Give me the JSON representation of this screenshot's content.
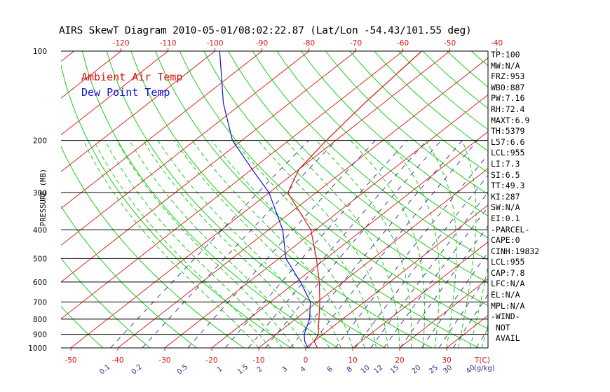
{
  "chart_data": {
    "type": "skew-t",
    "title": "AIRS SkewT Diagram 2010-05-01/08:02:22.87 (Lat/Lon -54.43/101.55 deg)",
    "ylabel": "PRESSURE (MB)",
    "yscale": "log",
    "ylim": [
      1000,
      100
    ],
    "pressure_ticks": [
      100,
      200,
      300,
      400,
      500,
      600,
      700,
      800,
      900,
      1000
    ],
    "bottom_temp_ticks": [
      -50,
      -40,
      -30,
      -20,
      -10,
      0,
      10,
      20,
      30
    ],
    "bottom_temp_unit_label": "T(C)",
    "top_temp_ticks": [
      -120,
      -110,
      -100,
      -90,
      -80,
      -70,
      -60,
      -50,
      -40
    ],
    "mixing_ratio_ticks": [
      "0.1",
      "0.2",
      "0.5",
      "1",
      "1.5",
      "2",
      "3",
      "4",
      "6",
      "8",
      "10",
      "12",
      "15",
      "20",
      "25",
      "30",
      "40"
    ],
    "mixing_ratio_unit_label": "(g/kg)",
    "series": [
      {
        "name": "Ambient Air Temp",
        "color": "#dd1010",
        "points": [
          {
            "p": 1000,
            "t": 2.5
          },
          {
            "p": 950,
            "t": 0
          },
          {
            "p": 900,
            "t": -1
          },
          {
            "p": 850,
            "t": -3
          },
          {
            "p": 800,
            "t": -5
          },
          {
            "p": 700,
            "t": -9.5
          },
          {
            "p": 600,
            "t": -15
          },
          {
            "p": 500,
            "t": -22
          },
          {
            "p": 400,
            "t": -31
          },
          {
            "p": 300,
            "t": -46
          },
          {
            "p": 250,
            "t": -50
          },
          {
            "p": 200,
            "t": -52
          },
          {
            "p": 150,
            "t": -54
          },
          {
            "p": 100,
            "t": -56
          }
        ]
      },
      {
        "name": "Dew Point Temp",
        "color": "#1010dd",
        "points": [
          {
            "p": 1000,
            "t": 0.5
          },
          {
            "p": 950,
            "t": -2
          },
          {
            "p": 900,
            "t": -4
          },
          {
            "p": 800,
            "t": -7
          },
          {
            "p": 700,
            "t": -11.5
          },
          {
            "p": 600,
            "t": -19
          },
          {
            "p": 500,
            "t": -28.5
          },
          {
            "p": 400,
            "t": -37
          },
          {
            "p": 300,
            "t": -50
          },
          {
            "p": 250,
            "t": -60
          },
          {
            "p": 200,
            "t": -72
          },
          {
            "p": 150,
            "t": -84
          },
          {
            "p": 100,
            "t": -99
          }
        ]
      }
    ],
    "background_lines": {
      "isotherms_color": "#dd1010",
      "dry_adiabats_color": "#00cc00",
      "moist_adiabats_color": "#00cc00",
      "mixing_ratio_color": "#3a2890",
      "isobars_color": "#000000"
    }
  },
  "stats": [
    "TP:100",
    "MW:N/A",
    "FRZ:953",
    "WB0:887",
    "PW:7.16",
    "RH:72.4",
    "MAXT:6.9",
    "TH:5379",
    "L57:6.6",
    "LCL:955",
    "LI:7.3",
    "SI:6.5",
    "TT:49.3",
    "KI:287",
    "SW:N/A",
    "EI:0.1",
    "-PARCEL-",
    "CAPE:0",
    "CINH:19832",
    "LCL:955",
    "CAP:7.8",
    "LFC:N/A",
    "EL:N/A",
    "MPL:N/A",
    "-WIND-",
    " NOT",
    " AVAIL"
  ]
}
